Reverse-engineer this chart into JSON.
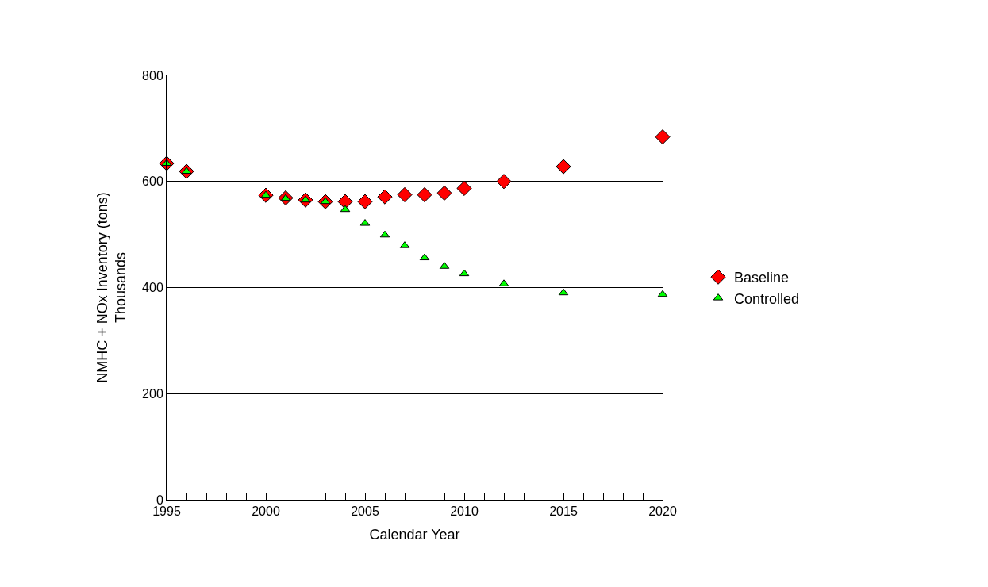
{
  "chart_data": {
    "type": "scatter",
    "xlabel": "Calendar Year",
    "ylabel": "NMHC + NOx Inventory (tons)\nThousands",
    "x": [
      1995,
      1996,
      2000,
      2001,
      2002,
      2003,
      2004,
      2005,
      2006,
      2007,
      2008,
      2009,
      2010,
      2012,
      2015,
      2020
    ],
    "series": [
      {
        "name": "Baseline",
        "color": "#ff0000",
        "marker": "diamond",
        "values": [
          634,
          619,
          574,
          569,
          565,
          562,
          562,
          562,
          571,
          575,
          575,
          578,
          587,
          600,
          628,
          684
        ]
      },
      {
        "name": "Controlled",
        "color": "#00ff00",
        "marker": "triangle",
        "values": [
          634,
          619,
          574,
          568,
          565,
          562,
          547,
          521,
          499,
          479,
          456,
          440,
          426,
          407,
          390,
          387
        ]
      }
    ],
    "xlim": [
      1995,
      2020
    ],
    "ylim": [
      0,
      800
    ],
    "xticks": [
      1995,
      {
        "value": 1996,
        "label": null
      },
      {
        "value": 1997,
        "label": null
      },
      {
        "value": 1998,
        "label": null
      },
      {
        "value": 1999,
        "label": null
      },
      2000,
      {
        "value": 2001,
        "label": null
      },
      {
        "value": 2002,
        "label": null
      },
      {
        "value": 2003,
        "label": null
      },
      {
        "value": 2004,
        "label": null
      },
      2005,
      {
        "value": 2006,
        "label": null
      },
      {
        "value": 2007,
        "label": null
      },
      {
        "value": 2008,
        "label": null
      },
      {
        "value": 2009,
        "label": null
      },
      2010,
      {
        "value": 2011,
        "label": null
      },
      {
        "value": 2012,
        "label": null
      },
      {
        "value": 2013,
        "label": null
      },
      {
        "value": 2014,
        "label": null
      },
      2015,
      {
        "value": 2016,
        "label": null
      },
      {
        "value": 2017,
        "label": null
      },
      {
        "value": 2018,
        "label": null
      },
      {
        "value": 2019,
        "label": null
      },
      2020
    ],
    "yticks": [
      0,
      200,
      400,
      600,
      800
    ],
    "grid": "y",
    "legend": "right"
  }
}
